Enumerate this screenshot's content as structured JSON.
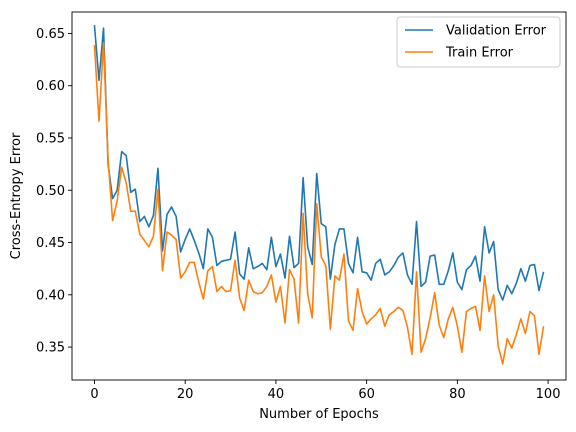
{
  "chart_data": {
    "type": "line",
    "title": "",
    "xlabel": "Number of Epochs",
    "ylabel": "Cross-Entropy Error",
    "xlim": [
      -4.95,
      103.95
    ],
    "ylim": [
      0.3185,
      0.6705
    ],
    "xticks": [
      0,
      20,
      40,
      60,
      80,
      100
    ],
    "yticks": [
      0.35,
      0.4,
      0.45,
      0.5,
      0.55,
      0.6,
      0.65
    ],
    "xtick_labels": [
      "0",
      "20",
      "40",
      "60",
      "80",
      "100"
    ],
    "ytick_labels": [
      "0.35",
      "0.40",
      "0.45",
      "0.50",
      "0.55",
      "0.60",
      "0.65"
    ],
    "grid": false,
    "legend_position": "top-right",
    "x": [
      0,
      1,
      2,
      3,
      4,
      5,
      6,
      7,
      8,
      9,
      10,
      11,
      12,
      13,
      14,
      15,
      16,
      17,
      18,
      19,
      20,
      21,
      22,
      23,
      24,
      25,
      26,
      27,
      28,
      29,
      30,
      31,
      32,
      33,
      34,
      35,
      36,
      37,
      38,
      39,
      40,
      41,
      42,
      43,
      44,
      45,
      46,
      47,
      48,
      49,
      50,
      51,
      52,
      53,
      54,
      55,
      56,
      57,
      58,
      59,
      60,
      61,
      62,
      63,
      64,
      65,
      66,
      67,
      68,
      69,
      70,
      71,
      72,
      73,
      74,
      75,
      76,
      77,
      78,
      79,
      80,
      81,
      82,
      83,
      84,
      85,
      86,
      87,
      88,
      89,
      90,
      91,
      92,
      93,
      94,
      95,
      96,
      97,
      98,
      99
    ],
    "series": [
      {
        "name": "Validation Error",
        "color": "#1f77b4",
        "values": [
          0.658,
          0.605,
          0.655,
          0.525,
          0.492,
          0.5,
          0.537,
          0.533,
          0.498,
          0.501,
          0.47,
          0.475,
          0.465,
          0.476,
          0.521,
          0.442,
          0.477,
          0.484,
          0.475,
          0.441,
          0.453,
          0.463,
          0.452,
          0.44,
          0.425,
          0.463,
          0.455,
          0.428,
          0.432,
          0.433,
          0.434,
          0.46,
          0.42,
          0.415,
          0.445,
          0.425,
          0.427,
          0.43,
          0.424,
          0.455,
          0.427,
          0.439,
          0.416,
          0.456,
          0.426,
          0.43,
          0.512,
          0.446,
          0.429,
          0.516,
          0.468,
          0.465,
          0.415,
          0.448,
          0.463,
          0.463,
          0.43,
          0.421,
          0.455,
          0.422,
          0.421,
          0.414,
          0.43,
          0.434,
          0.419,
          0.422,
          0.428,
          0.436,
          0.44,
          0.419,
          0.41,
          0.47,
          0.408,
          0.412,
          0.437,
          0.438,
          0.41,
          0.41,
          0.423,
          0.44,
          0.412,
          0.405,
          0.424,
          0.428,
          0.437,
          0.413,
          0.465,
          0.44,
          0.451,
          0.405,
          0.395,
          0.409,
          0.401,
          0.411,
          0.425,
          0.413,
          0.428,
          0.429,
          0.404,
          0.422
        ]
      },
      {
        "name": "Train Error",
        "color": "#ff7f0e",
        "values": [
          0.639,
          0.566,
          0.641,
          0.53,
          0.471,
          0.49,
          0.522,
          0.507,
          0.48,
          0.48,
          0.458,
          0.452,
          0.446,
          0.456,
          0.501,
          0.423,
          0.46,
          0.457,
          0.453,
          0.416,
          0.422,
          0.431,
          0.431,
          0.412,
          0.396,
          0.423,
          0.427,
          0.403,
          0.408,
          0.403,
          0.404,
          0.433,
          0.397,
          0.385,
          0.414,
          0.403,
          0.401,
          0.402,
          0.408,
          0.419,
          0.393,
          0.408,
          0.373,
          0.424,
          0.415,
          0.373,
          0.478,
          0.401,
          0.378,
          0.487,
          0.436,
          0.428,
          0.367,
          0.418,
          0.414,
          0.439,
          0.375,
          0.366,
          0.406,
          0.384,
          0.372,
          0.377,
          0.381,
          0.387,
          0.37,
          0.381,
          0.384,
          0.388,
          0.385,
          0.369,
          0.343,
          0.422,
          0.345,
          0.358,
          0.378,
          0.402,
          0.371,
          0.359,
          0.377,
          0.388,
          0.37,
          0.345,
          0.384,
          0.387,
          0.389,
          0.366,
          0.418,
          0.384,
          0.4,
          0.351,
          0.334,
          0.358,
          0.349,
          0.362,
          0.377,
          0.363,
          0.384,
          0.38,
          0.343,
          0.37
        ]
      }
    ]
  },
  "colors": {
    "validation": "#1f77b4",
    "train": "#ff7f0e",
    "axes": "#000000",
    "legend_border": "#cccccc"
  }
}
